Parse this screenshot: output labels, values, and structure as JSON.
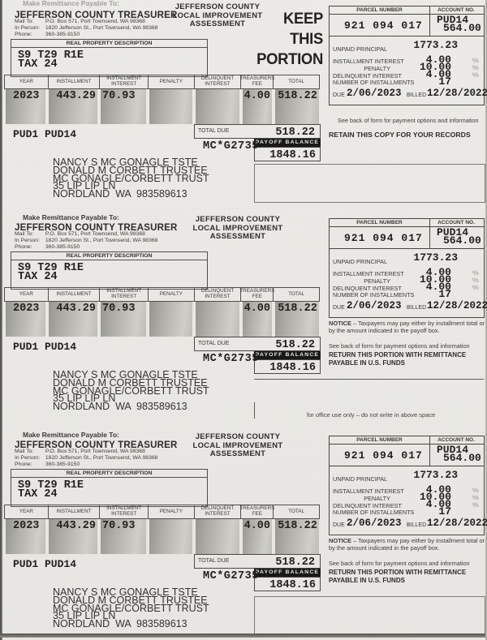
{
  "page": {
    "office_use_note": "for office use only – do not write in above space"
  },
  "payee": {
    "remittance_label": "Make Remittance Payable To:",
    "name": "JEFFERSON COUNTY TREASURER",
    "mail_label": "Mail To:",
    "mail": "P.O. Box 571, Port Townsend, WA 98368",
    "in_person_label": "In Person:",
    "in_person": "1820 Jefferson St., Port Townsend, WA 98368",
    "phone_label": "Phone:",
    "phone": "360-385-9150"
  },
  "assessment_title": {
    "line1": "JEFFERSON COUNTY",
    "line2": "LOCAL IMPROVEMENT",
    "line3": "ASSESSMENT"
  },
  "keep_portion": {
    "line1": "KEEP",
    "line2": "THIS",
    "line3": "PORTION"
  },
  "property": {
    "header": "REAL PROPERTY DESCRIPTION",
    "line1": "S9 T29 R1E",
    "line2": "TAX 24"
  },
  "installment_table": {
    "headers": [
      "YEAR",
      "INSTALLMENT",
      "INSTALLMENT\nINTEREST",
      "PENALTY",
      "DELINQUENT\nINTEREST",
      "TREASURERS\nFEE",
      "TOTAL"
    ],
    "row": {
      "year": "2023",
      "installment": "443.29",
      "installment_interest": "70.93",
      "penalty": "",
      "delinquent_interest": "",
      "treasurers_fee": "4.00",
      "total": "518.22"
    }
  },
  "codes": {
    "district": "PUD1 PUD14",
    "mc_code": "MC*G2735"
  },
  "totals": {
    "total_due_label": "TOTAL DUE",
    "total_due": "518.22",
    "payoff_label": "PAYOFF BALANCE",
    "payoff_balance": "1848.16"
  },
  "mailing_address": {
    "line1": "NANCY S MC GONAGLE TSTE",
    "line2": "DONALD M CORBETT TRUSTEE",
    "line3": "MC GONAGLE/CORBETT TRUST",
    "line4": "35 LIP LIP LN",
    "line5": "NORDLAND  WA  983589613"
  },
  "account_panel": {
    "parcel_header": "PARCEL NUMBER",
    "account_header": "ACCOUNT NO.",
    "parcel_number": "921 094 017",
    "account_line1": "PUD14",
    "account_line2": "564.00",
    "unpaid_principal_label": "UNPAID PRINCIPAL",
    "unpaid_principal": "1773.23",
    "installment_interest_label": "INSTALLMENT INTEREST",
    "installment_interest": "4.00",
    "penalty_label": "PENALTY",
    "penalty": "10.00",
    "delinquent_interest_label": "DELINQUENT INTEREST",
    "delinquent_interest": "4.00",
    "installments_label": "NUMBER OF INSTALLMENTS",
    "installments": "17",
    "percent_mark": "%",
    "due_label": "DUE",
    "due_date": "2/06/2023",
    "billed_label": "BILLED",
    "billed_date": "12/28/2022"
  },
  "notes": {
    "notice_bold": "NOTICE",
    "notice_rest": " – Taxpayers may pay either by installment total or by the amount indicated in the payoff box.",
    "see_back": "See back of form for payment options and information",
    "retain": "RETAIN THIS COPY FOR YOUR RECORDS",
    "return_portion": "RETURN THIS PORTION WITH REMITTANCE PAYABLE IN U.S. FUNDS"
  }
}
